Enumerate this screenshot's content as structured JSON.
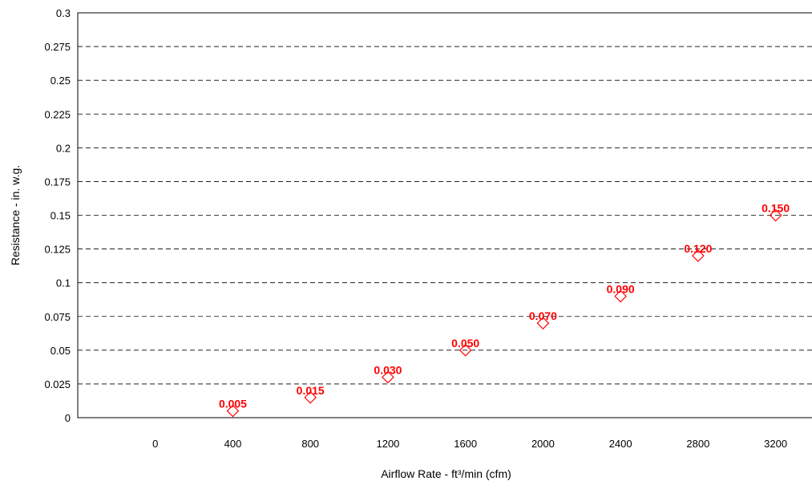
{
  "chart_data": {
    "type": "scatter",
    "title": "",
    "xlabel": "Airflow Rate - ft³/min (cfm)",
    "ylabel": "Resistance - in. w.g.",
    "xlim": [
      -400,
      3400
    ],
    "ylim": [
      0,
      0.3
    ],
    "x_ticks": [
      "0",
      "400",
      "800",
      "1200",
      "1600",
      "2000",
      "2400",
      "2800",
      "3200"
    ],
    "x_tick_values": [
      0,
      400,
      800,
      1200,
      1600,
      2000,
      2400,
      2800,
      3200
    ],
    "y_ticks": [
      "0",
      "0.025",
      "0.05",
      "0.075",
      "0.1",
      "0.125",
      "0.15",
      "0.175",
      "0.2",
      "0.225",
      "0.25",
      "0.275",
      "0.3"
    ],
    "y_tick_values": [
      0,
      0.025,
      0.05,
      0.075,
      0.1,
      0.125,
      0.15,
      0.175,
      0.2,
      0.225,
      0.25,
      0.275,
      0.3
    ],
    "grid": "horizontal dashed",
    "marker": "diamond-open",
    "series": [
      {
        "x": [
          400,
          800,
          1200,
          1600,
          2000,
          2400,
          2800,
          3200
        ],
        "y": [
          0.005,
          0.015,
          0.03,
          0.05,
          0.07,
          0.09,
          0.12,
          0.15
        ],
        "labels": [
          "0.005",
          "0.015",
          "0.030",
          "0.050",
          "0.070",
          "0.090",
          "0.120",
          "0.150"
        ],
        "color": "#ff0000"
      }
    ]
  }
}
